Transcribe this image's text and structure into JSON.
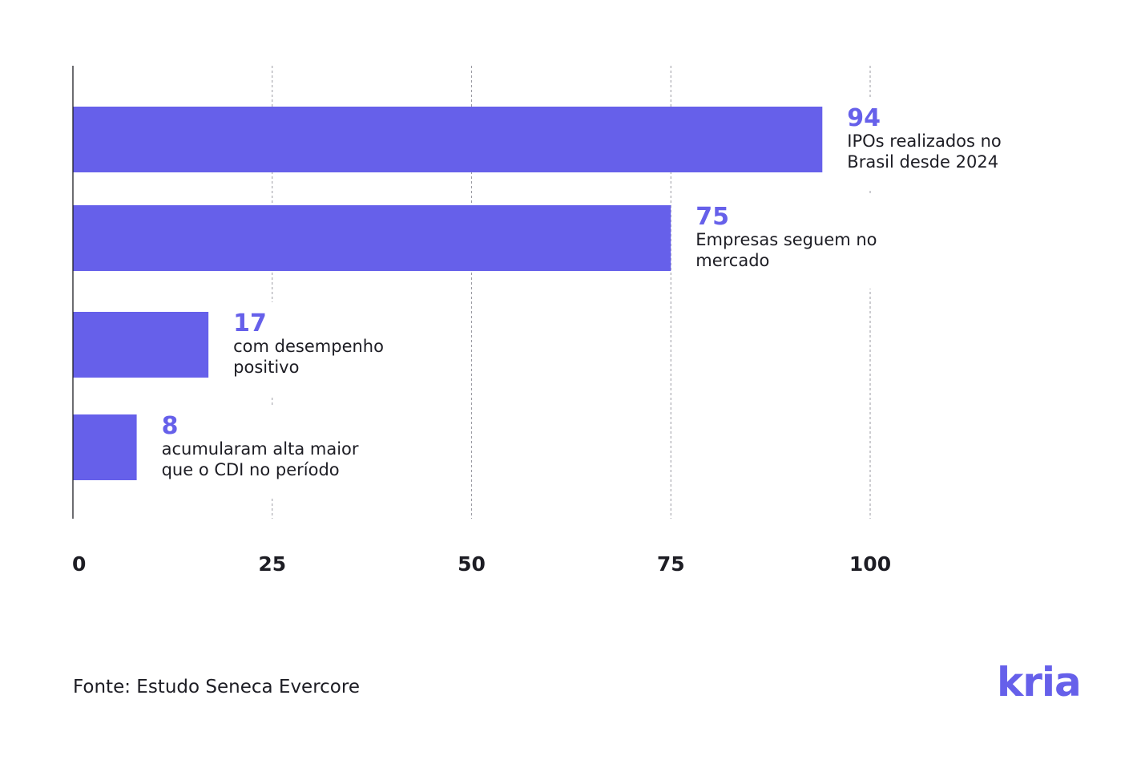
{
  "chart_data": {
    "type": "bar",
    "orientation": "horizontal",
    "categories": [
      "IPOs realizados no Brasil desde 2024",
      "Empresas seguem no mercado",
      "com desempenho positivo",
      "acumularam alta maior que o CDI no período"
    ],
    "values": [
      94,
      75,
      17,
      8
    ],
    "data_labels": [
      "94",
      "75",
      "17",
      "8"
    ],
    "label_lines": [
      [
        "IPOs realizados no",
        "Brasil desde 2024"
      ],
      [
        "Empresas seguem no",
        "mercado"
      ],
      [
        "com desempenho",
        "positivo"
      ],
      [
        "acumularam alta maior",
        "que o CDI no período"
      ]
    ],
    "xlim": [
      0,
      100
    ],
    "x_ticks": [
      0,
      25,
      50,
      75,
      100
    ],
    "x_tick_labels": [
      "0",
      "25",
      "50",
      "75",
      "100"
    ],
    "grid": "vertical dashed",
    "bar_color": "#6660ea",
    "value_color": "#6660ea",
    "text_color": "#1d1d24"
  },
  "source": "Fonte: Estudo Seneca Evercore",
  "brand": {
    "logo_text": "kria",
    "color": "#6660ea"
  }
}
